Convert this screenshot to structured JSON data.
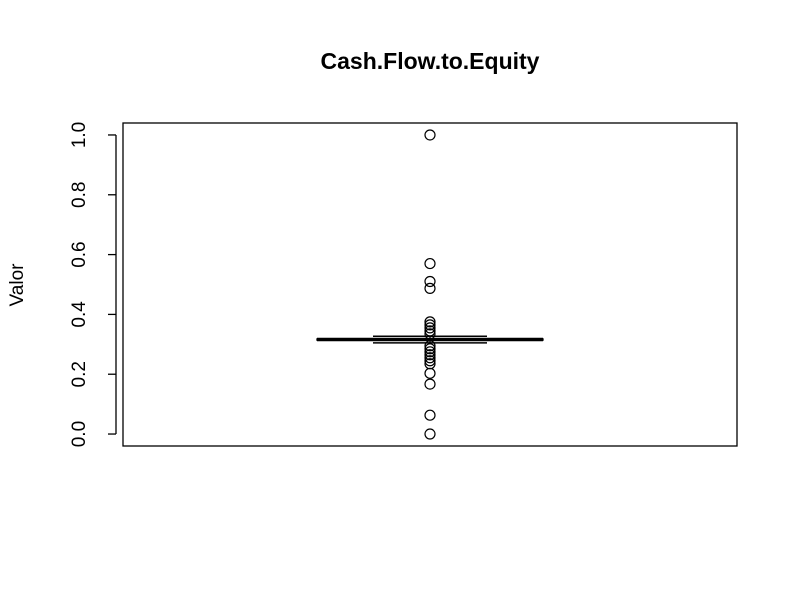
{
  "chart_data": {
    "type": "box",
    "title": "Cash.Flow.to.Equity",
    "y_label": "Valor",
    "boxes": [
      {
        "whislo": 0.305,
        "q1": 0.314,
        "median": 0.316,
        "q3": 0.318,
        "whishi": 0.327,
        "outliers": [
          1.0,
          0.57,
          0.51,
          0.487,
          0.375,
          0.365,
          0.355,
          0.345,
          0.335,
          0.295,
          0.285,
          0.275,
          0.265,
          0.255,
          0.245,
          0.235,
          0.203,
          0.167,
          0.063,
          0.0
        ]
      }
    ],
    "color": "#000000",
    "ylim": [
      -0.04,
      1.04
    ],
    "yticks": [
      {
        "value": 0,
        "label": "0.0"
      },
      0.2,
      0.4,
      0.6,
      0.8,
      {
        "value": 1,
        "label": "1.0"
      }
    ]
  }
}
